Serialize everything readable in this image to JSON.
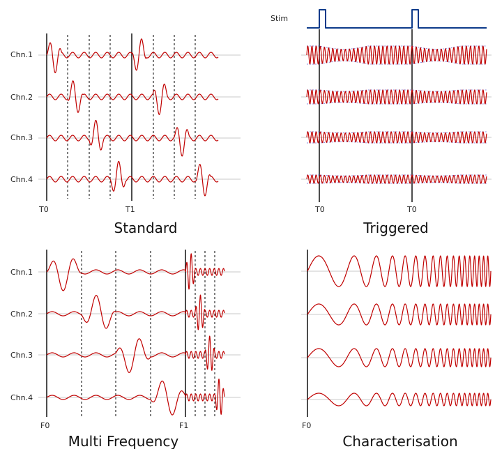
{
  "colors": {
    "wave": "#c00000",
    "envelope": "#8a8adf",
    "stim": "#0d3a8a",
    "baseline": "#c8c8c8",
    "marker": "#000000"
  },
  "panels": {
    "standard": {
      "title": "Standard",
      "channels": [
        "Chn.1",
        "Chn.2",
        "Chn.3",
        "Chn.4"
      ],
      "time_labels": [
        "T0",
        "T1"
      ]
    },
    "triggered": {
      "title": "Triggered",
      "stim_label": "Stim",
      "time_labels": [
        "T0",
        "T0"
      ]
    },
    "multi_frequency": {
      "title": "Multi Frequency",
      "channels": [
        "Chn.1",
        "Chn.2",
        "Chn.3",
        "Chn.4"
      ],
      "freq_labels": [
        "F0",
        "F1"
      ]
    },
    "characterisation": {
      "title": "Characterisation",
      "freq_labels": [
        "F0"
      ]
    }
  }
}
